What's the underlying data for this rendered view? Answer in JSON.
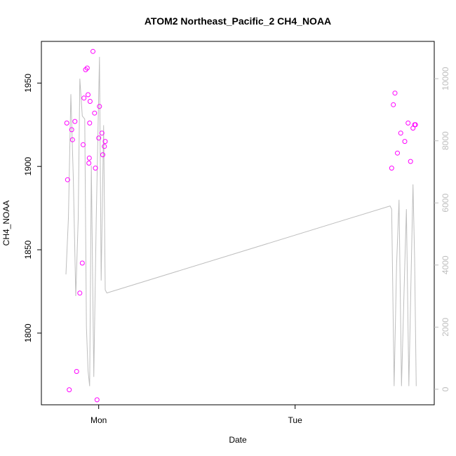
{
  "chart_data": {
    "type": "scatter",
    "title": "ATOM2 Northeast_Pacific_2 CH4_NOAA",
    "xlabel": "Date",
    "ylabel": "CH4_NOAA",
    "y_ticks": [
      "1800",
      "1850",
      "1900",
      "1950"
    ],
    "y_tick_values": [
      1800,
      1850,
      1900,
      1950
    ],
    "ylim": [
      1757,
      1975
    ],
    "x_ticks": [
      "Mon",
      "Tue"
    ],
    "x_tick_values": [
      24,
      48
    ],
    "xlim": [
      17,
      65
    ],
    "y2_ticks": [
      "0",
      "2000",
      "4000",
      "6000",
      "8000",
      "10000"
    ],
    "y2_tick_values": [
      0,
      2000,
      4000,
      6000,
      8000,
      10000
    ],
    "y2lim": [
      -500,
      11200
    ],
    "colors": {
      "points": "#ff00ff",
      "line": "#bebebe",
      "right_axis": "#bebebe"
    },
    "series": [
      {
        "type": "scatter",
        "axis": "left",
        "points": [
          [
            20.1,
            1926
          ],
          [
            20.2,
            1892
          ],
          [
            20.4,
            1766
          ],
          [
            20.7,
            1922
          ],
          [
            20.8,
            1916
          ],
          [
            21.1,
            1927
          ],
          [
            21.3,
            1777
          ],
          [
            21.7,
            1824
          ],
          [
            22.0,
            1842
          ],
          [
            22.1,
            1913
          ],
          [
            22.2,
            1941
          ],
          [
            22.4,
            1958
          ],
          [
            22.6,
            1959
          ],
          [
            22.7,
            1943
          ],
          [
            22.8,
            1902
          ],
          [
            22.85,
            1905
          ],
          [
            22.9,
            1926
          ],
          [
            22.95,
            1939
          ],
          [
            23.3,
            1969
          ],
          [
            23.5,
            1932
          ],
          [
            23.6,
            1899
          ],
          [
            23.8,
            1760
          ],
          [
            24.0,
            1917
          ],
          [
            24.1,
            1936
          ],
          [
            24.4,
            1920
          ],
          [
            24.5,
            1907
          ],
          [
            24.7,
            1912
          ],
          [
            24.8,
            1915
          ],
          [
            59.8,
            1899
          ],
          [
            60.0,
            1937
          ],
          [
            60.2,
            1944
          ],
          [
            60.5,
            1908
          ],
          [
            60.9,
            1920
          ],
          [
            61.4,
            1915
          ],
          [
            61.8,
            1926
          ],
          [
            62.1,
            1903
          ],
          [
            62.4,
            1923
          ],
          [
            62.6,
            1925
          ],
          [
            62.7,
            1925
          ]
        ]
      },
      {
        "type": "line",
        "axis": "right",
        "points": [
          [
            20.0,
            3700
          ],
          [
            20.3,
            5500
          ],
          [
            20.6,
            9500
          ],
          [
            20.9,
            6800
          ],
          [
            21.2,
            3000
          ],
          [
            21.5,
            5500
          ],
          [
            21.7,
            10000
          ],
          [
            22.0,
            8800
          ],
          [
            22.3,
            8700
          ],
          [
            22.5,
            2000
          ],
          [
            22.7,
            600
          ],
          [
            22.9,
            100
          ],
          [
            23.1,
            7200
          ],
          [
            23.4,
            400
          ],
          [
            23.7,
            5500
          ],
          [
            24.1,
            10700
          ],
          [
            24.3,
            3500
          ],
          [
            24.6,
            8500
          ],
          [
            24.8,
            3200
          ],
          [
            25.0,
            3100
          ],
          [
            59.6,
            5900
          ],
          [
            59.8,
            5800
          ],
          [
            60.1,
            100
          ],
          [
            60.4,
            4000
          ],
          [
            60.7,
            6100
          ],
          [
            61.0,
            100
          ],
          [
            61.4,
            4000
          ],
          [
            61.6,
            5800
          ],
          [
            61.9,
            100
          ],
          [
            62.2,
            4000
          ],
          [
            62.4,
            6600
          ],
          [
            62.6,
            4200
          ],
          [
            62.8,
            100
          ]
        ]
      }
    ]
  }
}
